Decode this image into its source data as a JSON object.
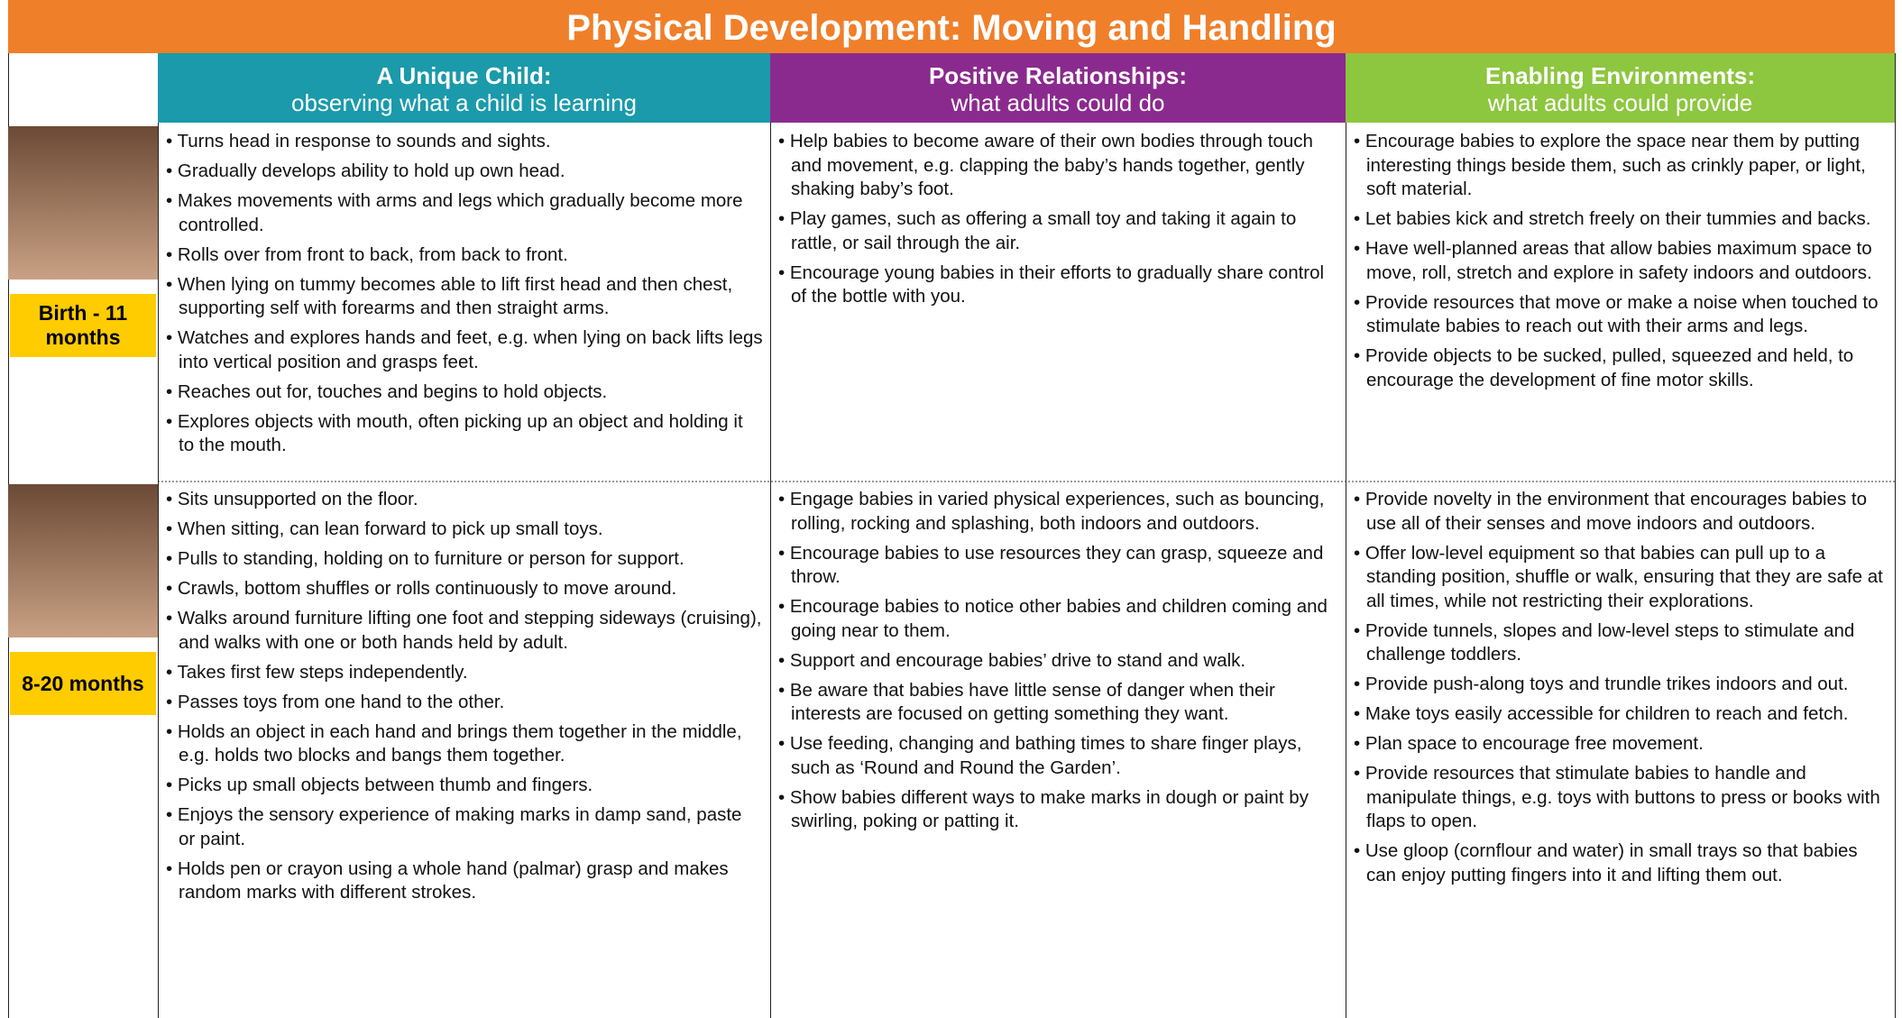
{
  "title": "Physical Development: Moving and Handling",
  "columns": [
    {
      "heading": "A Unique Child:",
      "subheading": "observing what a child is learning"
    },
    {
      "heading": "Positive Relationships:",
      "subheading": "what adults could do"
    },
    {
      "heading": "Enabling Environments:",
      "subheading": "what adults could provide"
    }
  ],
  "rows": [
    {
      "age": "Birth - 11 months",
      "cells": [
        [
          "Turns head in response to sounds and sights.",
          "Gradually develops ability to hold up own head.",
          "Makes movements with arms and legs which gradually become more controlled.",
          "Rolls over from front to back, from back to front.",
          "When lying on tummy becomes able to lift first head and then chest, supporting self with forearms and then straight arms.",
          "Watches and explores hands and feet, e.g. when lying on back lifts legs into vertical position and grasps feet.",
          "Reaches out for, touches and begins to hold objects.",
          "Explores objects with mouth, often picking up an object and holding it to the mouth."
        ],
        [
          "Help babies to become aware of their own bodies through touch and movement, e.g. clapping the baby’s hands together, gently shaking baby’s foot.",
          "Play games, such as offering a small toy and taking it again to rattle, or sail through the air.",
          "Encourage young babies in their efforts to gradually share control of the bottle with you."
        ],
        [
          "Encourage babies to explore the space near them by putting interesting things beside them, such as crinkly paper, or light, soft material.",
          "Let babies kick and stretch freely on their tummies and backs.",
          "Have well-planned areas that allow babies maximum space to move, roll, stretch and explore in safety indoors and outdoors.",
          "Provide resources that move or make a noise when touched to stimulate babies to reach out with their arms and legs.",
          "Provide objects to be sucked, pulled, squeezed and held, to encourage the development of fine motor skills."
        ]
      ]
    },
    {
      "age": "8-20 months",
      "cells": [
        [
          "Sits unsupported on the floor.",
          "When sitting, can lean forward to pick up small toys.",
          "Pulls to standing, holding on to furniture or person for support.",
          "Crawls, bottom shuffles or rolls continuously to move around.",
          "Walks around furniture lifting one foot and stepping sideways (cruising), and walks with one or both hands held by adult.",
          "Takes first few steps independently.",
          "Passes toys from one hand to the other.",
          "Holds an object in each hand and brings them together in the middle, e.g. holds two blocks and bangs them together.",
          "Picks up small objects between thumb and fingers.",
          "Enjoys the sensory experience of making marks in damp sand, paste or paint.",
          "Holds pen or crayon using a whole hand (palmar) grasp and makes random marks with different strokes."
        ],
        [
          "Engage babies in varied physical experiences, such as bouncing, rolling, rocking and splashing, both indoors and outdoors.",
          "Encourage babies to use resources they can grasp, squeeze and throw.",
          "Encourage babies to notice other babies and children coming and going near to them.",
          "Support and encourage babies’ drive to stand and walk.",
          "Be aware that babies have little sense of danger when their interests are focused on getting something they want.",
          "Use feeding, changing and bathing times to share finger plays, such as ‘Round and Round the Garden’.",
          "Show babies different ways to make marks in dough or paint by swirling, poking or patting it."
        ],
        [
          "Provide novelty in the environment that encourages babies to use all of their senses and move indoors and outdoors.",
          "Offer low-level equipment so that babies can pull up to a standing position, shuffle or walk, ensuring that they are safe at all times, while not restricting their explorations.",
          "Provide tunnels, slopes and low-level steps to stimulate and challenge toddlers.",
          "Provide push-along toys and trundle trikes indoors and out.",
          "Make toys easily accessible for children to reach and fetch.",
          "Plan space to encourage free movement.",
          "Provide resources that stimulate babies to handle and manipulate things, e.g. toys with buttons to press or books with flaps to open.",
          "Use gloop (cornflour and water) in small trays so that babies can enjoy putting fingers into it and lifting them out."
        ]
      ]
    }
  ]
}
